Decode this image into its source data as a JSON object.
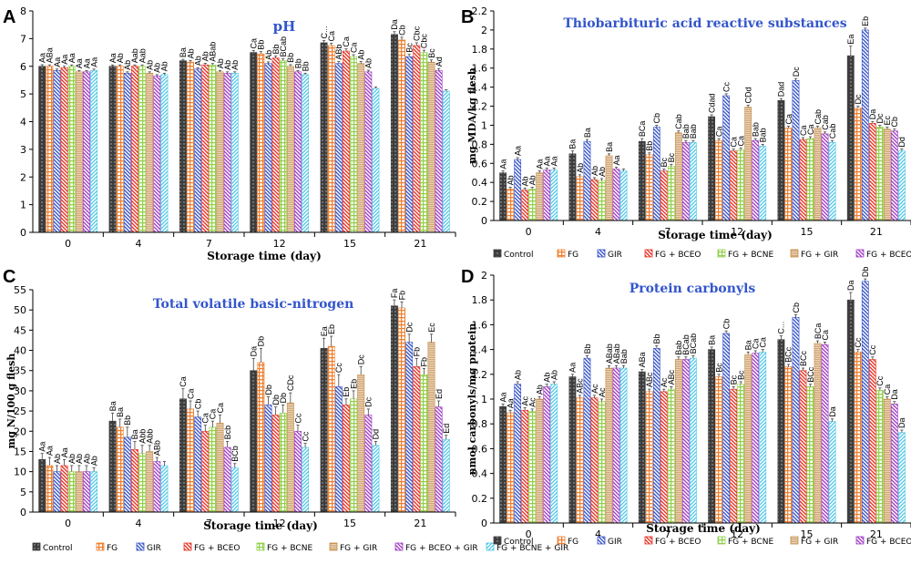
{
  "figure": {
    "series_names": [
      "Control",
      "FG",
      "GIR",
      "FG + BCEO",
      "FG + BCNE",
      "FG + GIR",
      "FG + BCEO + GIR",
      "FG + BCNE + GIR"
    ],
    "series_colors": [
      "#3d3d3d",
      "#f07e2c",
      "#3a56c8",
      "#e83224",
      "#8fd14a",
      "#c48a45",
      "#a13fc4",
      "#4cc7e6"
    ],
    "series_patterns": [
      "dots",
      "grid",
      "diag-left",
      "diag-left",
      "grid",
      "hlines",
      "diag-left",
      "diag-right"
    ]
  },
  "chart_data": [
    {
      "panel_letter": "A",
      "type": "bar",
      "title": "pH",
      "xlabel": "Storage time (day)",
      "ylabel": "",
      "categories": [
        "0",
        "4",
        "7",
        "12",
        "15",
        "21"
      ],
      "ylim": [
        0,
        8
      ],
      "yticks": [
        0,
        1,
        2,
        3,
        4,
        5,
        6,
        7,
        8
      ],
      "legend_position": "none",
      "series": [
        {
          "name": "Control",
          "values": [
            6.0,
            6.0,
            6.2,
            6.5,
            6.85,
            7.15
          ],
          "errors": [
            0.06,
            0.05,
            0.05,
            0.07,
            0.08,
            0.1
          ],
          "labels": [
            "Aa",
            "Aa",
            "Ba",
            "Ca",
            "C...",
            "Da"
          ]
        },
        {
          "name": "FG",
          "values": [
            6.0,
            6.0,
            6.15,
            6.45,
            6.75,
            6.95
          ],
          "errors": [
            0.05,
            0.05,
            0.06,
            0.08,
            0.08,
            0.1
          ],
          "labels": [
            "ABa",
            "Ab",
            "Ab",
            "Bb",
            "Ca",
            "Cb"
          ]
        },
        {
          "name": "GIR",
          "values": [
            5.85,
            5.75,
            5.9,
            6.1,
            6.1,
            6.35
          ],
          "errors": [
            0.05,
            0.05,
            0.05,
            0.06,
            0.07,
            0.08
          ],
          "labels": [
            "Aa",
            "Ab",
            "Ab",
            "Ab",
            "ABb",
            "Bc"
          ]
        },
        {
          "name": "FG + BCEO",
          "values": [
            5.95,
            6.0,
            6.05,
            6.3,
            6.55,
            6.75
          ],
          "errors": [
            0.05,
            0.05,
            0.06,
            0.07,
            0.08,
            0.1
          ],
          "labels": [
            "Aa",
            "Aab",
            "Ab",
            "Bb",
            "Ca",
            "Cbc"
          ]
        },
        {
          "name": "FG + BCNE",
          "values": [
            6.0,
            6.0,
            6.05,
            6.2,
            6.35,
            6.5
          ],
          "errors": [
            0.05,
            0.05,
            0.05,
            0.07,
            0.07,
            0.08
          ],
          "labels": [
            "Aa",
            "Aab",
            "ABab",
            "BCab",
            "Ca",
            "Cbc"
          ]
        },
        {
          "name": "FG + GIR",
          "values": [
            5.8,
            5.75,
            5.8,
            6.0,
            6.1,
            6.15
          ],
          "errors": [
            0.05,
            0.05,
            0.05,
            0.06,
            0.07,
            0.08
          ],
          "labels": [
            "Aa",
            "Ab",
            "Ab",
            "Bb",
            "Ab",
            "Bc"
          ]
        },
        {
          "name": "FG + BCEO + GIR",
          "values": [
            5.8,
            5.65,
            5.75,
            5.8,
            5.8,
            5.85
          ],
          "errors": [
            0.05,
            0.05,
            0.05,
            0.05,
            0.06,
            0.07
          ],
          "labels": [
            "Aa",
            "Ab",
            "Ab",
            "Bb",
            "Ab",
            "Ad"
          ]
        },
        {
          "name": "FG + BCNE + GIR",
          "values": [
            5.85,
            5.7,
            5.75,
            5.7,
            5.2,
            5.1
          ],
          "errors": [
            0.05,
            0.05,
            0.05,
            0.05,
            0.05,
            0.05
          ],
          "labels": [
            "Aa",
            "Ab",
            "Ab",
            "Bb",
            "",
            ""
          ]
        }
      ]
    },
    {
      "panel_letter": "B",
      "type": "bar",
      "title": "Thiobarbituric acid reactive substances",
      "xlabel": "Storage time (day)",
      "ylabel": "mg MDA/kg flesh",
      "categories": [
        "0",
        "4",
        "7",
        "12",
        "15",
        "21"
      ],
      "ylim": [
        0,
        2.2
      ],
      "yticks": [
        0,
        0.2,
        0.4,
        0.6,
        0.8,
        1,
        1.2,
        1.4,
        1.6,
        1.8,
        2,
        2.2
      ],
      "legend_position": "bottom",
      "series": [
        {
          "name": "Control",
          "values": [
            0.5,
            0.7,
            0.83,
            1.09,
            1.26,
            1.73
          ],
          "errors": [
            0.02,
            0.03,
            0.03,
            0.02,
            0.02,
            0.1
          ],
          "labels": [
            "Aa",
            "Ba",
            "BCa",
            "Cdad",
            "Dad",
            "Ea"
          ]
        },
        {
          "name": "FG",
          "values": [
            0.33,
            0.46,
            0.69,
            0.84,
            0.97,
            1.18
          ],
          "errors": [
            0.02,
            0.02,
            0.02,
            0.02,
            0.02,
            0.02
          ],
          "labels": [
            "Ab",
            "Ab",
            "Bb",
            "Ca",
            "Ca",
            "Dc"
          ]
        },
        {
          "name": "GIR",
          "values": [
            0.64,
            0.83,
            0.98,
            1.31,
            1.47,
            2.0
          ],
          "errors": [
            0.02,
            0.02,
            0.02,
            0.02,
            0.02,
            0.02
          ],
          "labels": [
            "Aa",
            "Ba",
            "Cb",
            "Cc",
            "Dc",
            "Eb"
          ]
        },
        {
          "name": "FG + BCEO",
          "values": [
            0.32,
            0.43,
            0.52,
            0.73,
            0.85,
            1.02
          ],
          "errors": [
            0.02,
            0.02,
            0.02,
            0.02,
            0.02,
            0.02
          ],
          "labels": [
            "Ab",
            "Ab",
            "Bc",
            "Ca",
            "Ca",
            "Da"
          ]
        },
        {
          "name": "FG + BCNE",
          "values": [
            0.33,
            0.42,
            0.57,
            0.74,
            0.86,
            0.98
          ],
          "errors": [
            0.02,
            0.02,
            0.02,
            0.02,
            0.02,
            0.02
          ],
          "labels": [
            "Ab",
            "Ab",
            "Bc",
            "Ca",
            "Ca",
            "Dc"
          ]
        },
        {
          "name": "FG + GIR",
          "values": [
            0.5,
            0.68,
            0.92,
            1.19,
            0.97,
            0.96
          ],
          "errors": [
            0.02,
            0.02,
            0.02,
            0.02,
            0.02,
            0.02
          ],
          "labels": [
            "Aa",
            "Ba",
            "Cab",
            "CDd",
            "Cab",
            "Ec"
          ]
        },
        {
          "name": "FG + BCEO + GIR",
          "values": [
            0.53,
            0.54,
            0.82,
            0.84,
            0.91,
            0.94
          ],
          "errors": [
            0.02,
            0.02,
            0.02,
            0.02,
            0.02,
            0.02
          ],
          "labels": [
            "Aa",
            "Aa",
            "Bab",
            "Bab",
            "Cab",
            "Cb"
          ]
        },
        {
          "name": "FG + BCNE + GIR",
          "values": [
            0.53,
            0.52,
            0.82,
            0.78,
            0.82,
            0.73
          ],
          "errors": [
            0.02,
            0.02,
            0.02,
            0.02,
            0.02,
            0.02
          ],
          "labels": [
            "Aa",
            "",
            "Bab",
            "Bab",
            "Cab",
            "Dd"
          ]
        }
      ]
    },
    {
      "panel_letter": "C",
      "type": "bar",
      "title": "Total volatile basic-nitrogen",
      "xlabel": "Storage time (day)",
      "ylabel": "mg N/100 g flesh",
      "categories": [
        "0",
        "4",
        "7",
        "12",
        "15",
        "21"
      ],
      "ylim": [
        0,
        55
      ],
      "yticks": [
        0,
        5,
        10,
        15,
        20,
        25,
        30,
        35,
        40,
        45,
        50,
        55
      ],
      "legend_position": "bottom",
      "series": [
        {
          "name": "Control",
          "values": [
            13,
            22.5,
            28,
            35,
            40.5,
            51
          ],
          "errors": [
            1.5,
            2.0,
            2.5,
            3.0,
            2.5,
            1.5
          ],
          "labels": [
            "Aa",
            "Ba",
            "Ca",
            "Da",
            "Ea",
            "Fa"
          ]
        },
        {
          "name": "FG",
          "values": [
            11.5,
            21,
            25.5,
            37,
            41,
            50.5
          ],
          "errors": [
            2.0,
            2.0,
            2.0,
            3.5,
            2.5,
            1.5
          ],
          "labels": [
            "Aa",
            "Ba",
            "Ca",
            "Db",
            "Eb",
            "Fb"
          ]
        },
        {
          "name": "GIR",
          "values": [
            10,
            18.5,
            23.5,
            26.5,
            31,
            42
          ],
          "errors": [
            1.5,
            2.5,
            1.5,
            2.0,
            3.0,
            2.0
          ],
          "labels": [
            "Ab",
            "Bb",
            "Cb",
            "Db",
            "Cc",
            "Dc"
          ]
        },
        {
          "name": "FG + BCEO",
          "values": [
            11.5,
            15.5,
            20,
            24,
            26.5,
            36
          ],
          "errors": [
            1.5,
            2.0,
            1.5,
            2.0,
            1.5,
            2.0
          ],
          "labels": [
            "Aa",
            "Ba",
            "Ca",
            "Db",
            "Eb",
            "Fb"
          ]
        },
        {
          "name": "FG + BCNE",
          "values": [
            10,
            14.5,
            21,
            24.5,
            28,
            34
          ],
          "errors": [
            1.5,
            2.0,
            1.5,
            2.0,
            2.0,
            1.5
          ],
          "labels": [
            "Ab",
            "Abb",
            "Ca",
            "Db",
            "Eb",
            "Fb"
          ]
        },
        {
          "name": "FG + GIR",
          "values": [
            10,
            15,
            22,
            27,
            34,
            42
          ],
          "errors": [
            1.5,
            1.5,
            2.0,
            2.5,
            2.0,
            2.0
          ],
          "labels": [
            "Ab",
            "Abb",
            "Ca",
            "CDc",
            "Dc",
            "Ec"
          ]
        },
        {
          "name": "FG + BCEO + GIR",
          "values": [
            10,
            12.5,
            16,
            20,
            24,
            26
          ],
          "errors": [
            1.5,
            1.0,
            1.5,
            1.5,
            1.5,
            1.5
          ],
          "labels": [
            "Ab",
            "ABb",
            "Bcb",
            "Cc",
            "Dc",
            "Ed"
          ]
        },
        {
          "name": "FG + BCNE + GIR",
          "values": [
            10,
            11.5,
            11,
            16,
            16.5,
            18
          ],
          "errors": [
            1.0,
            1.0,
            1.0,
            1.0,
            1.0,
            1.0
          ],
          "labels": [
            "Ab",
            "",
            "BCb",
            "Cc",
            "Dd",
            "Ed"
          ]
        }
      ]
    },
    {
      "panel_letter": "D",
      "type": "bar",
      "title": "Protein carbonyls",
      "xlabel": "Storage time (day)",
      "ylabel": "nmol carbonyls/mg protein",
      "categories": [
        "0",
        "4",
        "7",
        "12",
        "15",
        "21"
      ],
      "ylim": [
        0,
        2
      ],
      "yticks": [
        0,
        0.2,
        0.4,
        0.6,
        0.8,
        1,
        1.2,
        1.4,
        1.6,
        1.8,
        2
      ],
      "legend_position": "bottom",
      "series": [
        {
          "name": "Control",
          "values": [
            0.94,
            1.18,
            1.22,
            1.4,
            1.48,
            1.8
          ],
          "errors": [
            0.02,
            0.02,
            0.02,
            0.02,
            0.03,
            0.06
          ],
          "labels": [
            "Aa",
            "Aa",
            "ABa",
            "Ba",
            "C...",
            "Da"
          ]
        },
        {
          "name": "FG",
          "values": [
            0.89,
            1.01,
            1.06,
            1.18,
            1.26,
            1.38
          ],
          "errors": [
            0.02,
            0.02,
            0.02,
            0.02,
            0.02,
            0.02
          ],
          "labels": [
            "Aa",
            "ABc",
            "ABc",
            "Bc",
            "BCc",
            "Cc"
          ]
        },
        {
          "name": "GIR",
          "values": [
            1.12,
            1.33,
            1.41,
            1.53,
            1.66,
            1.95
          ],
          "errors": [
            0.02,
            0.02,
            0.02,
            0.02,
            0.02,
            0.02
          ],
          "labels": [
            "Ab",
            "Bb",
            "Bb",
            "Cb",
            "Cb",
            "Db"
          ]
        },
        {
          "name": "FG + BCEO",
          "values": [
            0.91,
            1.01,
            1.06,
            1.08,
            1.23,
            1.32
          ],
          "errors": [
            0.02,
            0.02,
            0.02,
            0.02,
            0.02,
            0.02
          ],
          "labels": [
            "Ac",
            "Ac",
            "Ac",
            "Bc",
            "BCc",
            "Cc"
          ]
        },
        {
          "name": "FG + BCNE",
          "values": [
            0.9,
            0.98,
            1.08,
            1.12,
            1.1,
            1.07
          ],
          "errors": [
            0.02,
            0.02,
            0.02,
            0.02,
            0.02,
            0.02
          ],
          "labels": [
            "Ac",
            "Ac",
            "ABc",
            "Bc",
            "BCc",
            "Cc"
          ]
        },
        {
          "name": "FG + GIR",
          "values": [
            1.0,
            1.25,
            1.32,
            1.36,
            1.45,
            1.0
          ],
          "errors": [
            0.02,
            0.02,
            0.02,
            0.02,
            0.02,
            0.02
          ],
          "labels": [
            "Ab",
            "ABab",
            "Bab",
            "Ba",
            "BCa",
            "Ca"
          ]
        },
        {
          "name": "FG + BCEO + GIR",
          "values": [
            1.1,
            1.25,
            1.32,
            1.37,
            1.44,
            0.96
          ],
          "errors": [
            0.02,
            0.02,
            0.02,
            0.02,
            0.02,
            0.02
          ],
          "labels": [
            "Ab",
            "ABab",
            "BCab",
            "Ca",
            "Ca",
            "Da"
          ]
        },
        {
          "name": "FG + BCNE + GIR",
          "values": [
            1.12,
            1.25,
            1.33,
            1.38,
            0.82,
            0.73
          ],
          "errors": [
            0.02,
            0.02,
            0.02,
            0.02,
            0.02,
            0.02
          ],
          "labels": [
            "Ab",
            "Bab",
            "BCab",
            "Ca",
            "Da",
            "Da"
          ]
        }
      ]
    }
  ]
}
